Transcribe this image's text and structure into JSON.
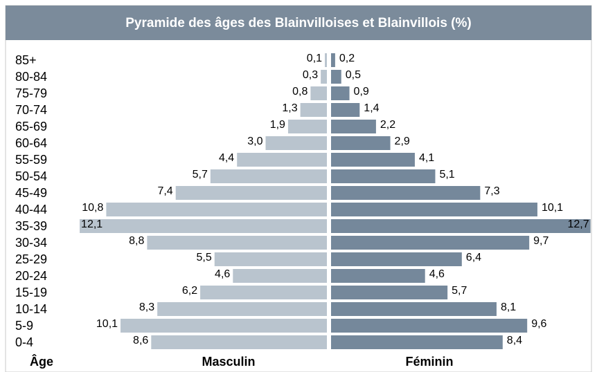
{
  "chart_data": {
    "type": "pyramid",
    "title": "Pyramide des âges des Blainvilloises et Blainvillois (%)",
    "y_label": "Âge",
    "categories": [
      "85+",
      "80-84",
      "75-79",
      "70-74",
      "65-69",
      "60-64",
      "55-59",
      "50-54",
      "45-49",
      "40-44",
      "35-39",
      "30-34",
      "25-29",
      "20-24",
      "15-19",
      "10-14",
      "5-9",
      "0-4"
    ],
    "series": [
      {
        "name": "Masculin",
        "color": "#b9c4ce",
        "values": [
          0.1,
          0.3,
          0.8,
          1.3,
          1.9,
          3.0,
          4.4,
          5.7,
          7.4,
          10.8,
          12.1,
          8.8,
          5.5,
          4.6,
          6.2,
          8.3,
          10.1,
          8.6
        ],
        "value_labels": [
          "0,1",
          "0,3",
          "0,8",
          "1,3",
          "1,9",
          "3,0",
          "4,4",
          "5,7",
          "7,4",
          "10,8",
          "12,1",
          "8,8",
          "5,5",
          "4,6",
          "6,2",
          "8,3",
          "10,1",
          "8,6"
        ]
      },
      {
        "name": "Féminin",
        "color": "#75889b",
        "values": [
          0.2,
          0.5,
          0.9,
          1.4,
          2.2,
          2.9,
          4.1,
          5.1,
          7.3,
          10.1,
          12.7,
          9.7,
          6.4,
          4.6,
          5.7,
          8.1,
          9.6,
          8.4
        ],
        "value_labels": [
          "0,2",
          "0,5",
          "0,9",
          "1,4",
          "2,2",
          "2,9",
          "4,1",
          "5,1",
          "7,3",
          "10,1",
          "12,7",
          "9,7",
          "6,4",
          "4,6",
          "5,7",
          "8,1",
          "9,6",
          "8,4"
        ]
      }
    ]
  }
}
